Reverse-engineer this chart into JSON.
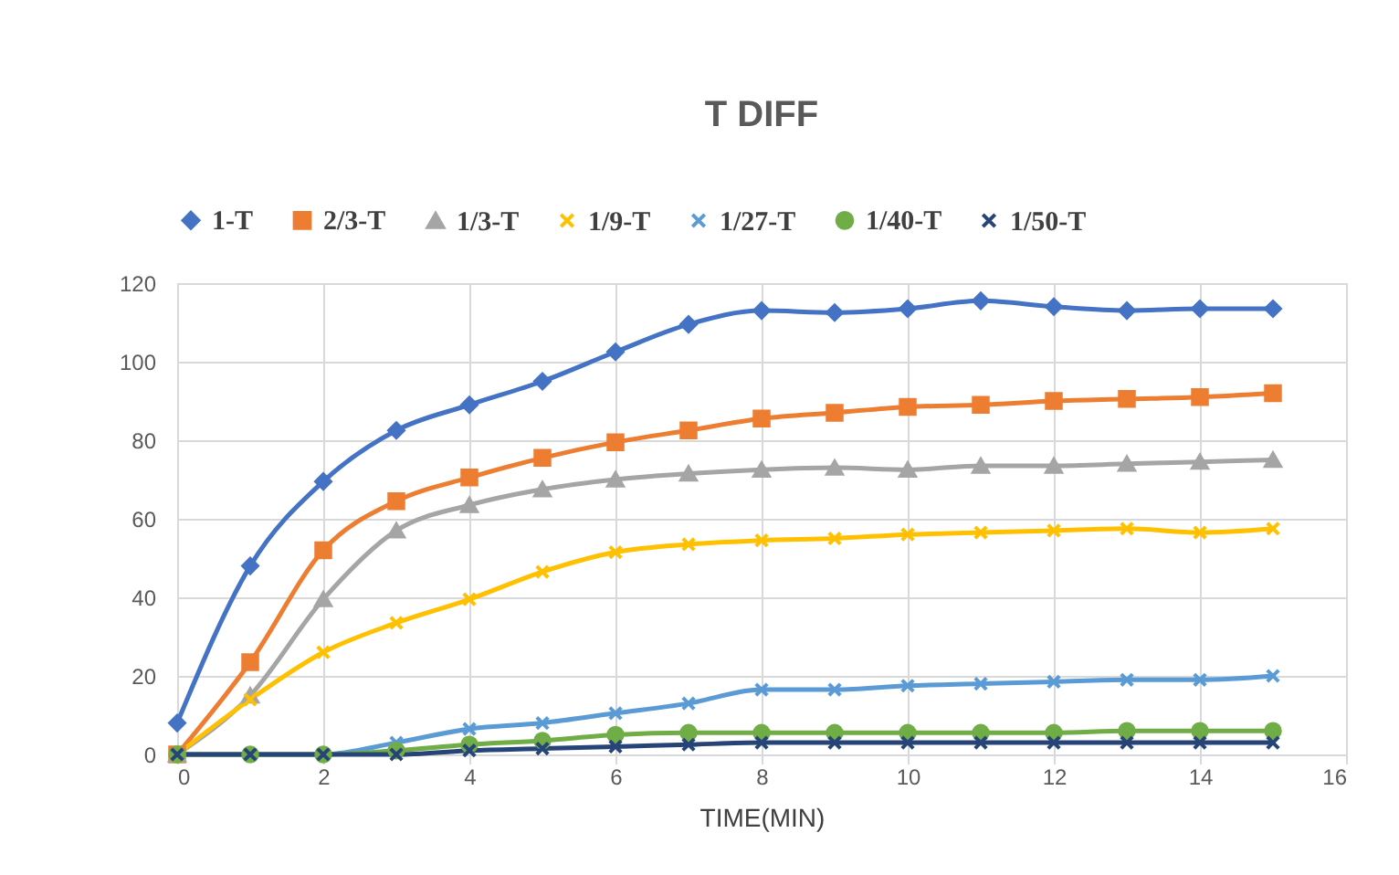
{
  "chart_data": {
    "type": "line",
    "title": "T DIFF",
    "xlabel": "TIME(MIN)",
    "x": [
      0,
      1,
      2,
      3,
      4,
      5,
      6,
      7,
      8,
      9,
      10,
      11,
      12,
      13,
      14,
      15
    ],
    "xlim": [
      0,
      16
    ],
    "xticks": [
      0,
      2,
      4,
      6,
      8,
      10,
      12,
      14,
      16
    ],
    "ylim": [
      0,
      120
    ],
    "yticks": [
      0,
      20,
      40,
      60,
      80,
      100,
      120
    ],
    "grid": true,
    "legend": "top",
    "series": [
      {
        "name": "1-T",
        "color": "#4472c4",
        "marker": "diamond",
        "values": [
          8,
          48,
          69.5,
          82.5,
          89,
          95,
          102.5,
          109.5,
          113,
          112.5,
          113.5,
          115.5,
          114,
          113,
          113.5,
          113.5
        ]
      },
      {
        "name": "2/3-T",
        "color": "#ed7d31",
        "marker": "square",
        "values": [
          0,
          23.5,
          52,
          64.5,
          70.5,
          75.5,
          79.5,
          82.5,
          85.5,
          87,
          88.5,
          89,
          90,
          90.5,
          91,
          92
        ]
      },
      {
        "name": "1/3-T",
        "color": "#a5a5a5",
        "marker": "triangle",
        "values": [
          0,
          15,
          39.5,
          57,
          63.5,
          67.5,
          70,
          71.5,
          72.5,
          73,
          72.5,
          73.5,
          73.5,
          74,
          74.5,
          75
        ]
      },
      {
        "name": "1/9-T",
        "color": "#ffc000",
        "marker": "cross",
        "values": [
          0,
          14,
          26,
          33.5,
          39.5,
          46.5,
          51.5,
          53.5,
          54.5,
          55,
          56,
          56.5,
          57,
          57.5,
          56.5,
          57.5
        ]
      },
      {
        "name": "1/27-T",
        "color": "#5b9bd5",
        "marker": "cross",
        "values": [
          0,
          0,
          0,
          3,
          6.5,
          8,
          10.5,
          13,
          16.5,
          16.5,
          17.5,
          18,
          18.5,
          19,
          19,
          20
        ]
      },
      {
        "name": "1/40-T",
        "color": "#70ad47",
        "marker": "circle",
        "values": [
          0,
          0,
          0,
          1,
          2.5,
          3.5,
          5,
          5.5,
          5.5,
          5.5,
          5.5,
          5.5,
          5.5,
          6,
          6,
          6
        ]
      },
      {
        "name": "1/50-T",
        "color": "#264478",
        "marker": "cross",
        "values": [
          0,
          0,
          0,
          0,
          1,
          1.5,
          2,
          2.5,
          3,
          3,
          3,
          3,
          3,
          3,
          3,
          3
        ]
      }
    ]
  }
}
